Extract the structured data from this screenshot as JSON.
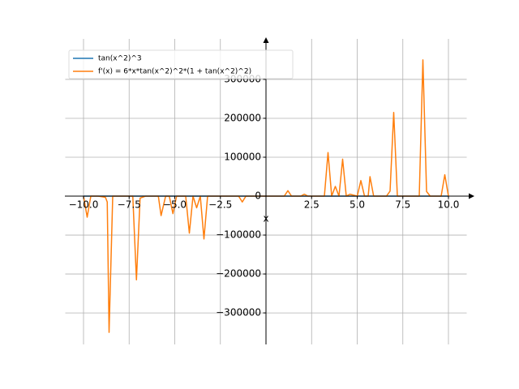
{
  "chart_data": {
    "type": "line",
    "x_label": "x",
    "x": [
      -10,
      -9.8,
      -9.6,
      -9.2,
      -8.8,
      -8.7,
      -8.6,
      -8.4,
      -7.3,
      -7.1,
      -6.9,
      -6.6,
      -5.9,
      -5.75,
      -5.5,
      -5.3,
      -5.1,
      -4.9,
      -4.4,
      -4.2,
      -4.0,
      -3.8,
      -3.6,
      -3.4,
      -3.2,
      -1.5,
      -1.3,
      -1.1,
      1.0,
      1.2,
      1.4,
      1.9,
      2.1,
      2.3,
      3.2,
      3.4,
      3.6,
      3.8,
      4.0,
      4.2,
      4.4,
      4.6,
      5.0,
      5.2,
      5.4,
      5.6,
      5.7,
      5.9,
      6.6,
      6.8,
      7.0,
      7.2,
      8.4,
      8.6,
      8.8,
      9.0,
      9.6,
      9.8,
      10.0
    ],
    "series": [
      {
        "name": "tan(x^2)^3",
        "color": "#1f77b4",
        "values": [
          0,
          0,
          0,
          0,
          0,
          0,
          0,
          0,
          0,
          0,
          0,
          0,
          0,
          0,
          0,
          0,
          0,
          0,
          0,
          0,
          0,
          0,
          0,
          0,
          0,
          0,
          0,
          0,
          0,
          0,
          0,
          0,
          0,
          0,
          0,
          0,
          0,
          0,
          0,
          0,
          0,
          0,
          0,
          0,
          0,
          0,
          0,
          0,
          0,
          0,
          0,
          0,
          0,
          0,
          0,
          0,
          0,
          0,
          0
        ]
      },
      {
        "name": "f'(x) = 6*x*tan(x^2)^2*(1 + tan(x^2)^2)",
        "color": "#ff7f0e",
        "values": [
          0,
          -54000,
          0,
          0,
          -3000,
          -15000,
          -350000,
          0,
          0,
          -215000,
          -5000,
          0,
          0,
          -50000,
          0,
          0,
          -45000,
          0,
          0,
          -95000,
          0,
          -30000,
          0,
          -110000,
          0,
          0,
          -15000,
          0,
          0,
          14000,
          0,
          0,
          5000,
          0,
          0,
          112000,
          0,
          25000,
          0,
          95000,
          0,
          5000,
          0,
          40000,
          0,
          0,
          50000,
          0,
          0,
          13000,
          215000,
          0,
          0,
          350000,
          12000,
          0,
          0,
          55000,
          0
        ]
      }
    ],
    "xlim": [
      -11,
      11
    ],
    "ylim": [
      -381000,
      404000
    ],
    "xticks": [
      {
        "value": -10,
        "label": "−10.0"
      },
      {
        "value": -7.5,
        "label": "−7.5"
      },
      {
        "value": -5,
        "label": "−5.0"
      },
      {
        "value": -2.5,
        "label": "−2.5"
      },
      {
        "value": 2.5,
        "label": "2.5"
      },
      {
        "value": 5,
        "label": "5.0"
      },
      {
        "value": 7.5,
        "label": "7.5"
      },
      {
        "value": 10,
        "label": "10.0"
      }
    ],
    "yticks": [
      {
        "value": -300000,
        "label": "−300000"
      },
      {
        "value": -200000,
        "label": "−200000"
      },
      {
        "value": -100000,
        "label": "−100000"
      },
      0,
      100000,
      200000,
      300000
    ],
    "grid": true,
    "legend": "upper left"
  }
}
